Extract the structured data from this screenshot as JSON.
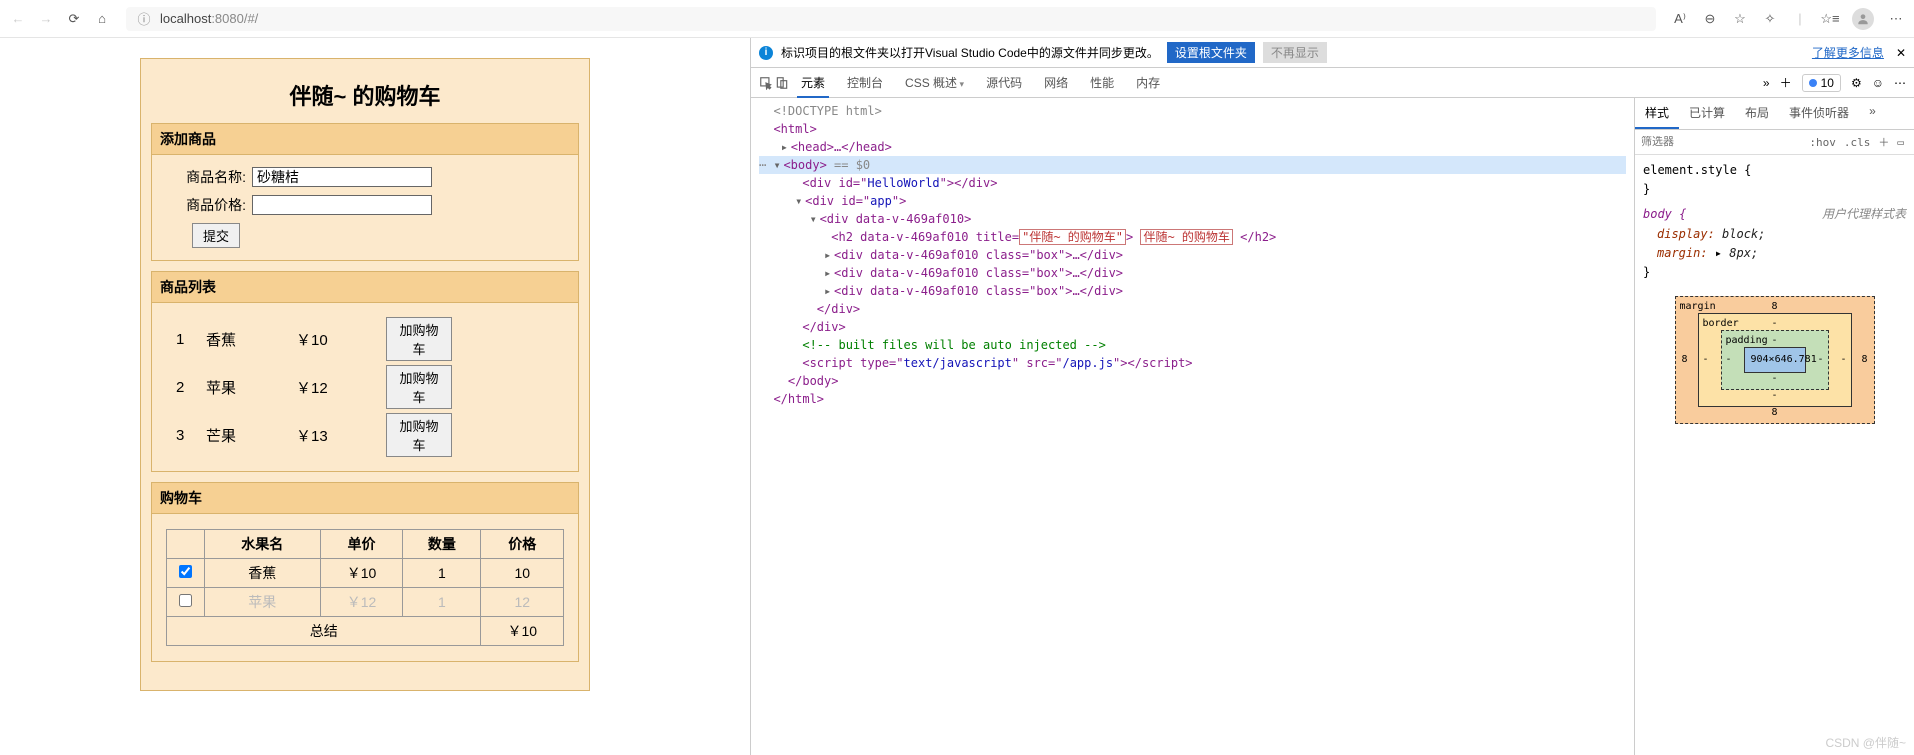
{
  "browser": {
    "url_proto": "localhost",
    "url_rest": ":8080/#/"
  },
  "app": {
    "title": "伴随~ 的购物车",
    "add_section": "添加商品",
    "name_label": "商品名称:",
    "price_label": "商品价格:",
    "name_value": "砂糖桔",
    "price_value": "",
    "submit": "提交",
    "list_section": "商品列表",
    "add_cart": "加购物车",
    "products": [
      {
        "idx": "1",
        "name": "香蕉",
        "price": "￥10"
      },
      {
        "idx": "2",
        "name": "苹果",
        "price": "￥12"
      },
      {
        "idx": "3",
        "name": "芒果",
        "price": "￥13"
      }
    ],
    "cart_section": "购物车",
    "headers": {
      "name": "水果名",
      "unit": "单价",
      "qty": "数量",
      "price": "价格"
    },
    "rows": [
      {
        "checked": true,
        "name": "香蕉",
        "unit": "￥10",
        "qty": "1",
        "price": "10"
      },
      {
        "checked": false,
        "name": "苹果",
        "unit": "￥12",
        "qty": "1",
        "price": "12"
      }
    ],
    "total_label": "总结",
    "total_value": "￥10"
  },
  "devtools": {
    "info_text": "标识项目的根文件夹以打开Visual Studio Code中的源文件并同步更改。",
    "info_btn1": "设置根文件夹",
    "info_btn2": "不再显示",
    "info_link": "了解更多信息",
    "tabs": [
      "元素",
      "控制台",
      "CSS 概述",
      "源代码",
      "网络",
      "性能",
      "内存"
    ],
    "issues": "10",
    "styles_tabs": [
      "样式",
      "已计算",
      "布局",
      "事件侦听器"
    ],
    "filter_placeholder": "筛选器",
    "hov": ":hov",
    "cls": ".cls",
    "elem_style": "element.style {",
    "body_sel": "body {",
    "ua_sheet": "用户代理样式表",
    "prop1": "display:",
    "val1": "block;",
    "prop2": "margin:",
    "val2": "8px;",
    "box_model": {
      "margin": "margin",
      "m": "8",
      "border": "border",
      "b": "-",
      "padding": "padding",
      "p": "-",
      "content": "904×646.781"
    },
    "dom": {
      "l1": "<!DOCTYPE html>",
      "l2": "<html>",
      "l3": "<head>…</head>",
      "l4": "<body>",
      "l4b": " == $0",
      "l5a": "<div id=\"",
      "l5b": "HelloWorld",
      "l5c": "\"></div>",
      "l6a": "<div id=\"",
      "l6b": "app",
      "l6c": "\">",
      "l7a": "<div data-v-469af010>",
      "l8a": "<h2 data-v-469af010 title=",
      "l8b": "\"伴随~ 的购物车\"",
      "l8c": "伴随~ 的购物车",
      "l8d": "</h2>",
      "l9": "<div data-v-469af010 class=\"box\">…</div>",
      "l10": "<div data-v-469af010 class=\"box\">…</div>",
      "l11": "<div data-v-469af010 class=\"box\">…</div>",
      "l12": "</div>",
      "l13": "</div>",
      "l14": "<!-- built files will be auto injected -->",
      "l15a": "<script type=\"",
      "l15b": "text/javascript",
      "l15c": "\" src=\"",
      "l15d": "/app.js",
      "l15e": "\"></scr",
      "l15f": "ipt>",
      "l16": "</body>",
      "l17": "</html>"
    }
  },
  "watermark": "CSDN @伴随~"
}
